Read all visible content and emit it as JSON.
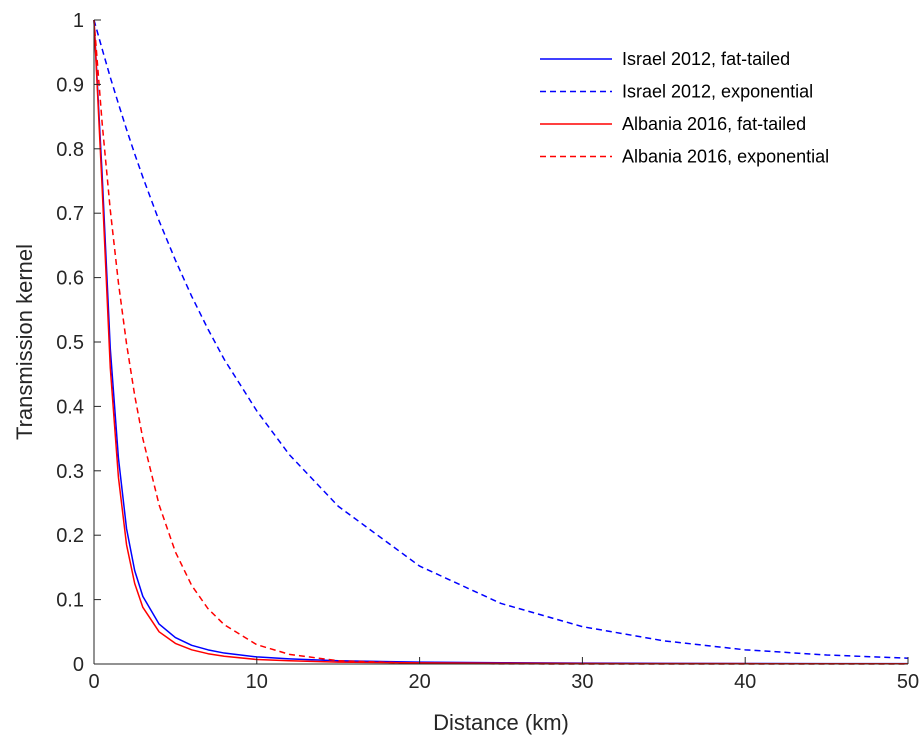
{
  "chart_data": {
    "type": "line",
    "title": "",
    "xlabel": "Distance (km)",
    "ylabel": "Transmission kernel",
    "xlim": [
      0,
      50
    ],
    "ylim": [
      0,
      1
    ],
    "xticks": [
      0,
      10,
      20,
      30,
      40,
      50
    ],
    "yticks": [
      0,
      0.1,
      0.2,
      0.3,
      0.4,
      0.5,
      0.6,
      0.7,
      0.8,
      0.9,
      1
    ],
    "xtick_labels": [
      "0",
      "10",
      "20",
      "30",
      "40",
      "50"
    ],
    "ytick_labels": [
      "0",
      "0.1",
      "0.2",
      "0.3",
      "0.4",
      "0.5",
      "0.6",
      "0.7",
      "0.8",
      "0.9",
      "1"
    ],
    "grid": false,
    "legend_position": "top-right",
    "x": [
      0,
      0.5,
      1,
      1.5,
      2,
      2.5,
      3,
      4,
      5,
      6,
      7,
      8,
      10,
      12,
      15,
      20,
      25,
      30,
      35,
      40,
      45,
      50
    ],
    "series": [
      {
        "name": "Israel 2012, fat-tailed",
        "color": "#0000ff",
        "style": "solid",
        "values": [
          1,
          0.76,
          0.49,
          0.32,
          0.21,
          0.145,
          0.105,
          0.062,
          0.041,
          0.029,
          0.022,
          0.017,
          0.011,
          0.008,
          0.005,
          0.003,
          0.002,
          0.0014,
          0.001,
          0.0008,
          0.0006,
          0.0005
        ]
      },
      {
        "name": "Israel 2012, exponential",
        "color": "#0000ff",
        "style": "dashed",
        "values": [
          1,
          0.955,
          0.911,
          0.87,
          0.83,
          0.792,
          0.756,
          0.688,
          0.627,
          0.571,
          0.52,
          0.473,
          0.393,
          0.325,
          0.245,
          0.152,
          0.094,
          0.058,
          0.036,
          0.022,
          0.014,
          0.009
        ]
      },
      {
        "name": "Albania 2016, fat-tailed",
        "color": "#ff0000",
        "style": "solid",
        "values": [
          1,
          0.74,
          0.46,
          0.29,
          0.185,
          0.125,
          0.088,
          0.05,
          0.032,
          0.022,
          0.016,
          0.012,
          0.007,
          0.005,
          0.003,
          0.0018,
          0.0012,
          0.0008,
          0.0006,
          0.0005,
          0.0004,
          0.0003
        ]
      },
      {
        "name": "Albania 2016, exponential",
        "color": "#ff0000",
        "style": "dashed",
        "values": [
          1,
          0.84,
          0.705,
          0.592,
          0.497,
          0.417,
          0.35,
          0.247,
          0.174,
          0.122,
          0.086,
          0.061,
          0.03,
          0.015,
          0.005,
          0.001,
          0.0002,
          0,
          0,
          0,
          0,
          0
        ]
      }
    ]
  }
}
